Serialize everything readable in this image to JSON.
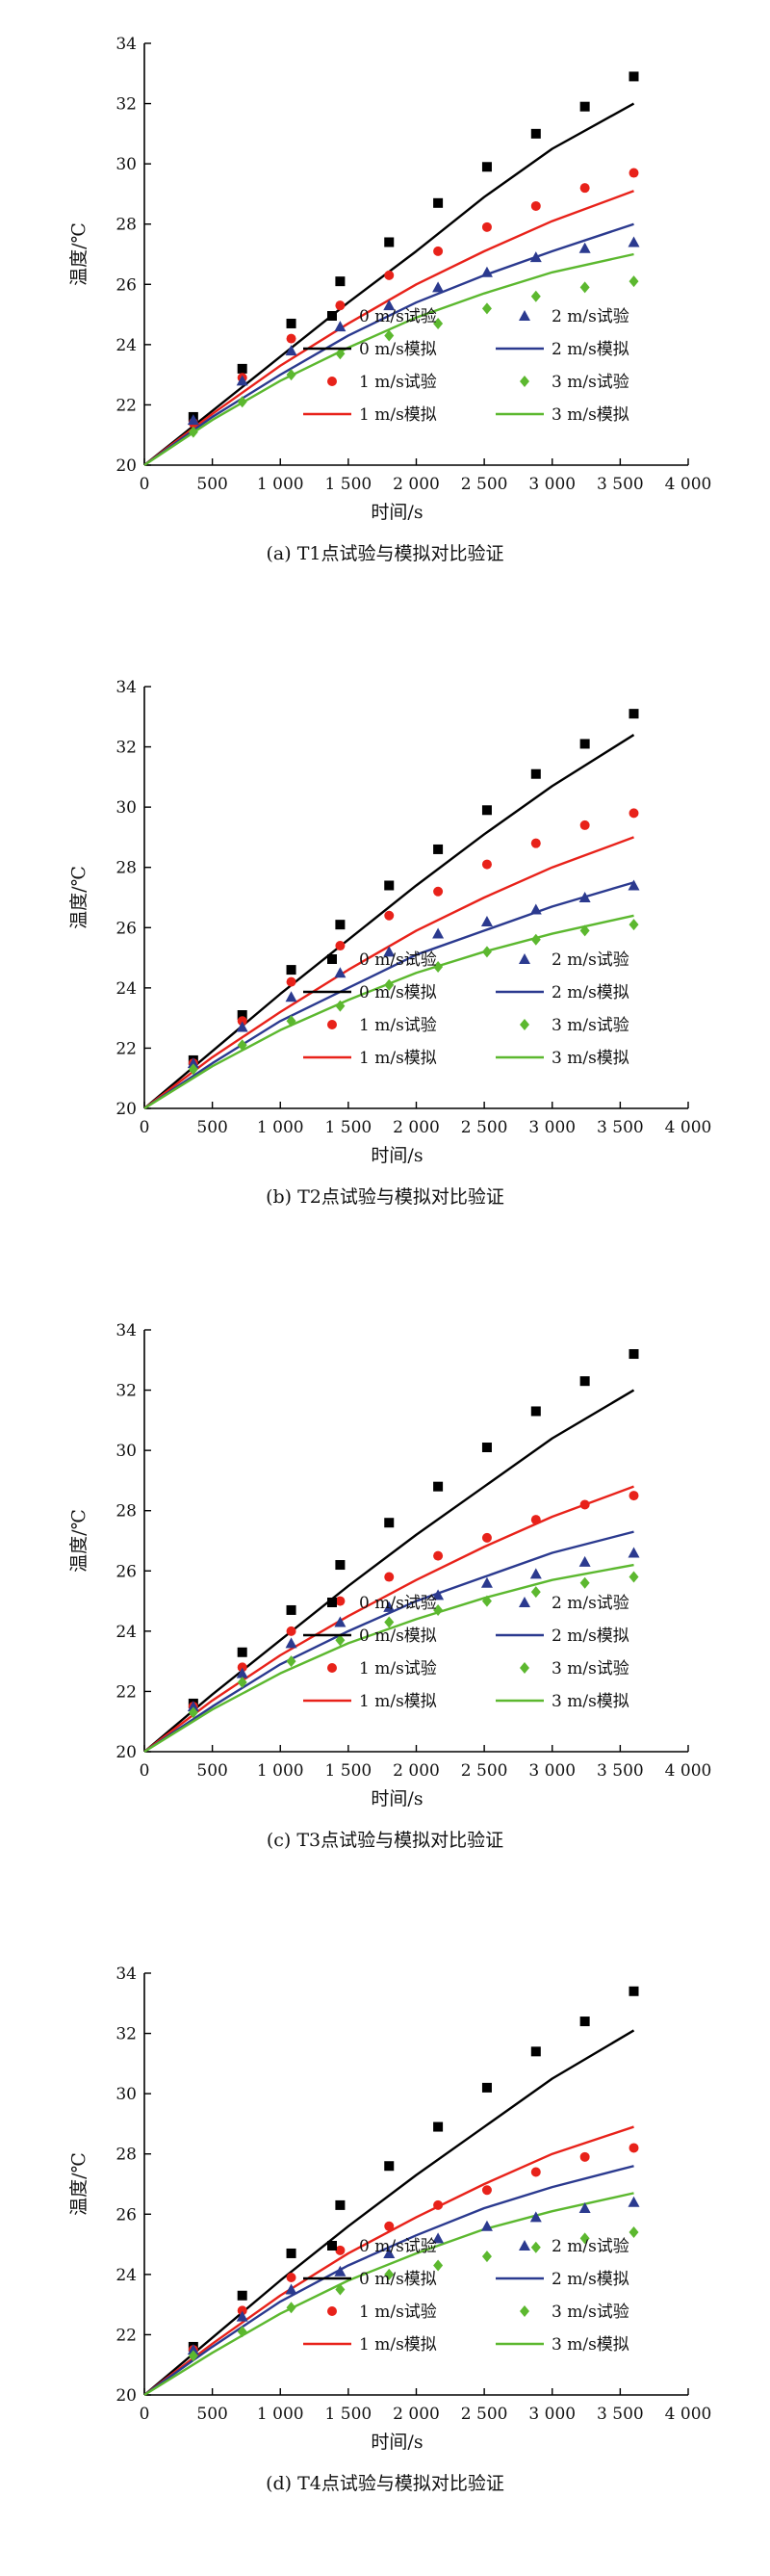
{
  "chart_data": [
    {
      "type": "line",
      "caption": "(a) T1点试验与模拟对比验证",
      "xlabel": "时间/s",
      "ylabel": "温度/℃",
      "xlim": [
        0,
        4000
      ],
      "ylim": [
        20,
        34
      ],
      "xticks": [
        0,
        500,
        1000,
        1500,
        2000,
        2500,
        3000,
        3500,
        4000
      ],
      "xtick_labels": [
        "0",
        "500",
        "1 000",
        "1 500",
        "2 000",
        "2 500",
        "3 000",
        "3 500",
        "4 000"
      ],
      "yticks": [
        20,
        22,
        24,
        26,
        28,
        30,
        32,
        34
      ],
      "legend_position": "bottom-right",
      "series": [
        {
          "name": "0 m/s试验",
          "kind": "scatter",
          "marker": "square",
          "color": "#000000",
          "x": [
            360,
            720,
            1080,
            1440,
            1800,
            2160,
            2520,
            2880,
            3240,
            3600
          ],
          "y": [
            21.6,
            23.2,
            24.7,
            26.1,
            27.4,
            28.7,
            29.9,
            31.0,
            31.9,
            32.9
          ]
        },
        {
          "name": "1 m/s试验",
          "kind": "scatter",
          "marker": "circle",
          "color": "#e8221a",
          "x": [
            360,
            720,
            1080,
            1440,
            1800,
            2160,
            2520,
            2880,
            3240,
            3600
          ],
          "y": [
            21.4,
            22.9,
            24.2,
            25.3,
            26.3,
            27.1,
            27.9,
            28.6,
            29.2,
            29.7
          ]
        },
        {
          "name": "2 m/s试验",
          "kind": "scatter",
          "marker": "triangle",
          "color": "#2b3a8f",
          "x": [
            360,
            720,
            1080,
            1440,
            1800,
            2160,
            2520,
            2880,
            3240,
            3600
          ],
          "y": [
            21.5,
            22.8,
            23.8,
            24.6,
            25.3,
            25.9,
            26.4,
            26.9,
            27.2,
            27.4
          ]
        },
        {
          "name": "3 m/s试验",
          "kind": "scatter",
          "marker": "diamond",
          "color": "#5cb82f",
          "x": [
            360,
            720,
            1080,
            1440,
            1800,
            2160,
            2520,
            2880,
            3240,
            3600
          ],
          "y": [
            21.1,
            22.1,
            23.0,
            23.7,
            24.3,
            24.7,
            25.2,
            25.6,
            25.9,
            26.1
          ]
        },
        {
          "name": "0 m/s模拟",
          "kind": "line",
          "color": "#000000",
          "x": [
            0,
            500,
            1000,
            1500,
            2000,
            2500,
            3000,
            3600
          ],
          "y": [
            20,
            21.8,
            23.6,
            25.4,
            27.1,
            28.9,
            30.5,
            32.0
          ]
        },
        {
          "name": "1 m/s模拟",
          "kind": "line",
          "color": "#e8221a",
          "x": [
            0,
            500,
            1000,
            1500,
            2000,
            2500,
            3000,
            3600
          ],
          "y": [
            20,
            21.7,
            23.3,
            24.7,
            26.0,
            27.1,
            28.1,
            29.1
          ]
        },
        {
          "name": "2 m/s模拟",
          "kind": "line",
          "color": "#2b3a8f",
          "x": [
            0,
            500,
            1000,
            1500,
            2000,
            2500,
            3000,
            3600
          ],
          "y": [
            20,
            21.6,
            23.0,
            24.3,
            25.4,
            26.3,
            27.1,
            28.0
          ]
        },
        {
          "name": "3 m/s模拟",
          "kind": "line",
          "color": "#5cb82f",
          "x": [
            0,
            500,
            1000,
            1500,
            2000,
            2500,
            3000,
            3600
          ],
          "y": [
            20,
            21.5,
            22.8,
            23.9,
            24.9,
            25.7,
            26.4,
            27.0
          ]
        }
      ]
    },
    {
      "type": "line",
      "caption": "(b) T2点试验与模拟对比验证",
      "xlabel": "时间/s",
      "ylabel": "温度/℃",
      "xlim": [
        0,
        4000
      ],
      "ylim": [
        20,
        34
      ],
      "xticks": [
        0,
        500,
        1000,
        1500,
        2000,
        2500,
        3000,
        3500,
        4000
      ],
      "xtick_labels": [
        "0",
        "500",
        "1 000",
        "1 500",
        "2 000",
        "2 500",
        "3 000",
        "3 500",
        "4 000"
      ],
      "yticks": [
        20,
        22,
        24,
        26,
        28,
        30,
        32,
        34
      ],
      "legend_position": "bottom-right",
      "series": [
        {
          "name": "0 m/s试验",
          "kind": "scatter",
          "marker": "square",
          "color": "#000000",
          "x": [
            360,
            720,
            1080,
            1440,
            1800,
            2160,
            2520,
            2880,
            3240,
            3600
          ],
          "y": [
            21.6,
            23.1,
            24.6,
            26.1,
            27.4,
            28.6,
            29.9,
            31.1,
            32.1,
            33.1
          ]
        },
        {
          "name": "1 m/s试验",
          "kind": "scatter",
          "marker": "circle",
          "color": "#e8221a",
          "x": [
            360,
            720,
            1080,
            1440,
            1800,
            2160,
            2520,
            2880,
            3240,
            3600
          ],
          "y": [
            21.5,
            22.9,
            24.2,
            25.4,
            26.4,
            27.2,
            28.1,
            28.8,
            29.4,
            29.8
          ]
        },
        {
          "name": "2 m/s试验",
          "kind": "scatter",
          "marker": "triangle",
          "color": "#2b3a8f",
          "x": [
            360,
            720,
            1080,
            1440,
            1800,
            2160,
            2520,
            2880,
            3240,
            3600
          ],
          "y": [
            21.5,
            22.7,
            23.7,
            24.5,
            25.2,
            25.8,
            26.2,
            26.6,
            27.0,
            27.4
          ]
        },
        {
          "name": "3 m/s试验",
          "kind": "scatter",
          "marker": "diamond",
          "color": "#5cb82f",
          "x": [
            360,
            720,
            1080,
            1440,
            1800,
            2160,
            2520,
            2880,
            3240,
            3600
          ],
          "y": [
            21.3,
            22.1,
            22.9,
            23.4,
            24.1,
            24.7,
            25.2,
            25.6,
            25.9,
            26.1
          ]
        },
        {
          "name": "0 m/s模拟",
          "kind": "line",
          "color": "#000000",
          "x": [
            0,
            500,
            1000,
            1500,
            2000,
            2500,
            3000,
            3600
          ],
          "y": [
            20,
            21.9,
            23.8,
            25.6,
            27.4,
            29.1,
            30.7,
            32.4
          ]
        },
        {
          "name": "1 m/s模拟",
          "kind": "line",
          "color": "#e8221a",
          "x": [
            0,
            500,
            1000,
            1500,
            2000,
            2500,
            3000,
            3600
          ],
          "y": [
            20,
            21.7,
            23.2,
            24.6,
            25.9,
            27.0,
            28.0,
            29.0
          ]
        },
        {
          "name": "2 m/s模拟",
          "kind": "line",
          "color": "#2b3a8f",
          "x": [
            0,
            500,
            1000,
            1500,
            2000,
            2500,
            3000,
            3600
          ],
          "y": [
            20,
            21.5,
            22.9,
            24.0,
            25.1,
            25.9,
            26.7,
            27.5
          ]
        },
        {
          "name": "3 m/s模拟",
          "kind": "line",
          "color": "#5cb82f",
          "x": [
            0,
            500,
            1000,
            1500,
            2000,
            2500,
            3000,
            3600
          ],
          "y": [
            20,
            21.4,
            22.6,
            23.6,
            24.5,
            25.2,
            25.8,
            26.4
          ]
        }
      ]
    },
    {
      "type": "line",
      "caption": "(c) T3点试验与模拟对比验证",
      "xlabel": "时间/s",
      "ylabel": "温度/℃",
      "xlim": [
        0,
        4000
      ],
      "ylim": [
        20,
        34
      ],
      "xticks": [
        0,
        500,
        1000,
        1500,
        2000,
        2500,
        3000,
        3500,
        4000
      ],
      "xtick_labels": [
        "0",
        "500",
        "1 000",
        "1 500",
        "2 000",
        "2 500",
        "3 000",
        "3 500",
        "4 000"
      ],
      "yticks": [
        20,
        22,
        24,
        26,
        28,
        30,
        32,
        34
      ],
      "legend_position": "bottom-right",
      "series": [
        {
          "name": "0 m/s试验",
          "kind": "scatter",
          "marker": "square",
          "color": "#000000",
          "x": [
            360,
            720,
            1080,
            1440,
            1800,
            2160,
            2520,
            2880,
            3240,
            3600
          ],
          "y": [
            21.6,
            23.3,
            24.7,
            26.2,
            27.6,
            28.8,
            30.1,
            31.3,
            32.3,
            33.2
          ]
        },
        {
          "name": "1 m/s试验",
          "kind": "scatter",
          "marker": "circle",
          "color": "#e8221a",
          "x": [
            360,
            720,
            1080,
            1440,
            1800,
            2160,
            2520,
            2880,
            3240,
            3600
          ],
          "y": [
            21.5,
            22.8,
            24.0,
            25.0,
            25.8,
            26.5,
            27.1,
            27.7,
            28.2,
            28.5
          ]
        },
        {
          "name": "2 m/s试验",
          "kind": "scatter",
          "marker": "triangle",
          "color": "#2b3a8f",
          "x": [
            360,
            720,
            1080,
            1440,
            1800,
            2160,
            2520,
            2880,
            3240,
            3600
          ],
          "y": [
            21.5,
            22.6,
            23.6,
            24.3,
            24.8,
            25.2,
            25.6,
            25.9,
            26.3,
            26.6
          ]
        },
        {
          "name": "3 m/s试验",
          "kind": "scatter",
          "marker": "diamond",
          "color": "#5cb82f",
          "x": [
            360,
            720,
            1080,
            1440,
            1800,
            2160,
            2520,
            2880,
            3240,
            3600
          ],
          "y": [
            21.3,
            22.3,
            23.0,
            23.7,
            24.3,
            24.7,
            25.0,
            25.3,
            25.6,
            25.8
          ]
        },
        {
          "name": "0 m/s模拟",
          "kind": "line",
          "color": "#000000",
          "x": [
            0,
            500,
            1000,
            1500,
            2000,
            2500,
            3000,
            3600
          ],
          "y": [
            20,
            21.9,
            23.7,
            25.5,
            27.2,
            28.8,
            30.4,
            32.0
          ]
        },
        {
          "name": "1 m/s模拟",
          "kind": "line",
          "color": "#e8221a",
          "x": [
            0,
            500,
            1000,
            1500,
            2000,
            2500,
            3000,
            3600
          ],
          "y": [
            20,
            21.7,
            23.2,
            24.5,
            25.7,
            26.8,
            27.8,
            28.8
          ]
        },
        {
          "name": "2 m/s模拟",
          "kind": "line",
          "color": "#2b3a8f",
          "x": [
            0,
            500,
            1000,
            1500,
            2000,
            2500,
            3000,
            3600
          ],
          "y": [
            20,
            21.5,
            22.9,
            24.0,
            25.0,
            25.8,
            26.6,
            27.3
          ]
        },
        {
          "name": "3 m/s模拟",
          "kind": "line",
          "color": "#5cb82f",
          "x": [
            0,
            500,
            1000,
            1500,
            2000,
            2500,
            3000,
            3600
          ],
          "y": [
            20,
            21.4,
            22.6,
            23.6,
            24.4,
            25.1,
            25.7,
            26.2
          ]
        }
      ]
    },
    {
      "type": "line",
      "caption": "(d) T4点试验与模拟对比验证",
      "xlabel": "时间/s",
      "ylabel": "温度/℃",
      "xlim": [
        0,
        4000
      ],
      "ylim": [
        20,
        34
      ],
      "xticks": [
        0,
        500,
        1000,
        1500,
        2000,
        2500,
        3000,
        3500,
        4000
      ],
      "xtick_labels": [
        "0",
        "500",
        "1 000",
        "1 500",
        "2 000",
        "2 500",
        "3 000",
        "3 500",
        "4 000"
      ],
      "yticks": [
        20,
        22,
        24,
        26,
        28,
        30,
        32,
        34
      ],
      "legend_position": "bottom-right",
      "series": [
        {
          "name": "0 m/s试验",
          "kind": "scatter",
          "marker": "square",
          "color": "#000000",
          "x": [
            360,
            720,
            1080,
            1440,
            1800,
            2160,
            2520,
            2880,
            3240,
            3600
          ],
          "y": [
            21.6,
            23.3,
            24.7,
            26.3,
            27.6,
            28.9,
            30.2,
            31.4,
            32.4,
            33.4
          ]
        },
        {
          "name": "1 m/s试验",
          "kind": "scatter",
          "marker": "circle",
          "color": "#e8221a",
          "x": [
            360,
            720,
            1080,
            1440,
            1800,
            2160,
            2520,
            2880,
            3240,
            3600
          ],
          "y": [
            21.5,
            22.8,
            23.9,
            24.8,
            25.6,
            26.3,
            26.8,
            27.4,
            27.9,
            28.2
          ]
        },
        {
          "name": "2 m/s试验",
          "kind": "scatter",
          "marker": "triangle",
          "color": "#2b3a8f",
          "x": [
            360,
            720,
            1080,
            1440,
            1800,
            2160,
            2520,
            2880,
            3240,
            3600
          ],
          "y": [
            21.5,
            22.6,
            23.5,
            24.1,
            24.7,
            25.2,
            25.6,
            25.9,
            26.2,
            26.4
          ]
        },
        {
          "name": "3 m/s试验",
          "kind": "scatter",
          "marker": "diamond",
          "color": "#5cb82f",
          "x": [
            360,
            720,
            1080,
            1440,
            1800,
            2160,
            2520,
            2880,
            3240,
            3600
          ],
          "y": [
            21.3,
            22.1,
            22.9,
            23.5,
            24.0,
            24.3,
            24.6,
            24.9,
            25.2,
            25.4
          ]
        },
        {
          "name": "0 m/s模拟",
          "kind": "line",
          "color": "#000000",
          "x": [
            0,
            500,
            1000,
            1500,
            2000,
            2500,
            3000,
            3600
          ],
          "y": [
            20,
            21.9,
            23.8,
            25.6,
            27.3,
            28.9,
            30.5,
            32.1
          ]
        },
        {
          "name": "1 m/s模拟",
          "kind": "line",
          "color": "#e8221a",
          "x": [
            0,
            500,
            1000,
            1500,
            2000,
            2500,
            3000,
            3600
          ],
          "y": [
            20,
            21.7,
            23.3,
            24.7,
            25.9,
            27.0,
            28.0,
            28.9
          ]
        },
        {
          "name": "2 m/s模拟",
          "kind": "line",
          "color": "#2b3a8f",
          "x": [
            0,
            500,
            1000,
            1500,
            2000,
            2500,
            3000,
            3600
          ],
          "y": [
            20,
            21.6,
            23.1,
            24.3,
            25.3,
            26.2,
            26.9,
            27.6
          ]
        },
        {
          "name": "3 m/s模拟",
          "kind": "line",
          "color": "#5cb82f",
          "x": [
            0,
            500,
            1000,
            1500,
            2000,
            2500,
            3000,
            3600
          ],
          "y": [
            20,
            21.4,
            22.7,
            23.8,
            24.7,
            25.5,
            26.1,
            26.7
          ]
        }
      ]
    }
  ]
}
